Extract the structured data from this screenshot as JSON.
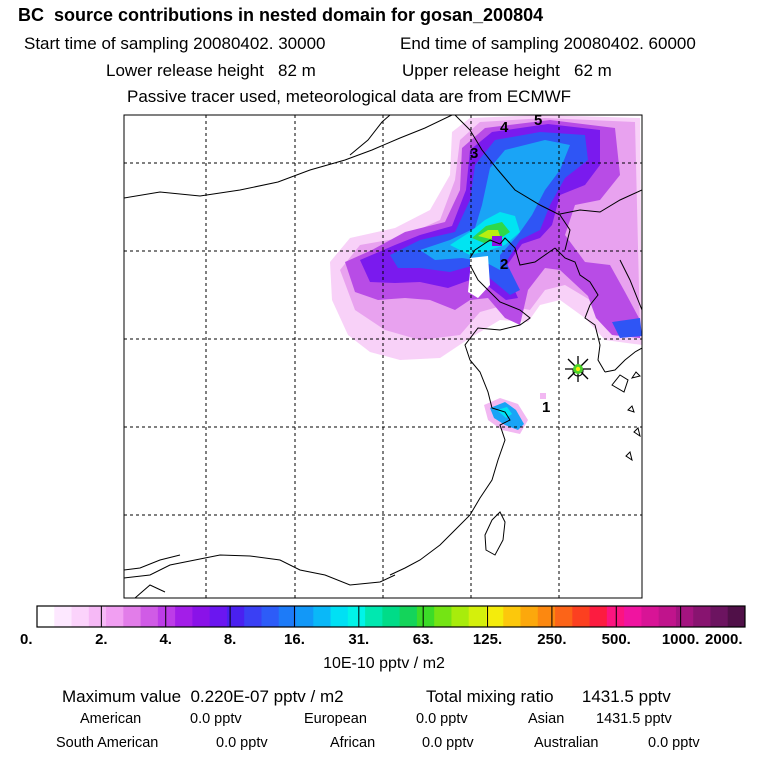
{
  "header": {
    "title": "BC  source contributions in nested domain for gosan_200804",
    "start_time": "Start time of sampling 20080402. 30000",
    "end_time": "End time of sampling 20080402. 60000",
    "lower_release": "Lower release height   82 m",
    "upper_release": "Upper release height   62 m",
    "tracer_note": "Passive tracer used, meteorological data are from ECMWF"
  },
  "map": {
    "region_labels": [
      "1",
      "2",
      "3",
      "4",
      "5"
    ],
    "receptor": "star-marker"
  },
  "legend": {
    "tick_labels": [
      "0.",
      "2.",
      "4.",
      "8.",
      "16.",
      "31.",
      "63.",
      "125.",
      "250.",
      "500.",
      "1000.",
      "2000."
    ],
    "unit": "10E-10 pptv / m2",
    "colors": [
      "#ffffff",
      "#fde8ff",
      "#fbd3fb",
      "#f6b9f6",
      "#f19ff2",
      "#e27de9",
      "#d05be6",
      "#bd3ce8",
      "#a31ee8",
      "#8a12e8",
      "#6b16f0",
      "#4a20f0",
      "#3a40f4",
      "#2d5cf8",
      "#1d7bf8",
      "#1298f8",
      "#0ab8f8",
      "#00e0f4",
      "#00f4e8",
      "#00e8b0",
      "#00dc88",
      "#14d45a",
      "#3cdc28",
      "#74e414",
      "#a8ec0c",
      "#d4f00c",
      "#f4ec0c",
      "#fcc80c",
      "#fca80c",
      "#fc8810",
      "#fc6418",
      "#fc4020",
      "#fc1c40",
      "#fc1480",
      "#f014a0",
      "#d81496",
      "#c0148c",
      "#a41480",
      "#881470",
      "#6c1460",
      "#501048"
    ]
  },
  "stats": {
    "max_value": "Maximum value  0.220E-07 pptv / m2",
    "total_mixing": "Total mixing ratio      1431.5 pptv",
    "sources": [
      {
        "label": "American",
        "value": "0.0 pptv"
      },
      {
        "label": "European",
        "value": "0.0 pptv"
      },
      {
        "label": "Asian",
        "value": "1431.5 pptv"
      },
      {
        "label": "South American",
        "value": "0.0 pptv"
      },
      {
        "label": "African",
        "value": "0.0 pptv"
      },
      {
        "label": "Australian",
        "value": "0.0 pptv"
      }
    ]
  }
}
